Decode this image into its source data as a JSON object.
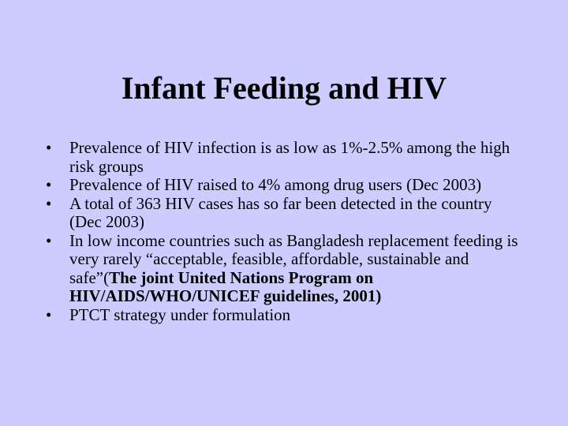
{
  "slide": {
    "title": "Infant Feeding and HIV",
    "bullet_glyph": "•",
    "bullets": [
      {
        "text": "Prevalence of  HIV infection is as low as 1%-2.5% among the high risk groups"
      },
      {
        "text": "Prevalence of  HIV raised to 4% among drug users   (Dec 2003)"
      },
      {
        "text": "A total of 363 HIV cases has so far been detected in the country (Dec 2003)"
      },
      {
        "text": "In low income countries such as Bangladesh replacement feeding is very rarely “acceptable, feasible, affordable, sustainable and safe”(",
        "bold_text": "The joint United Nations Program on HIV/AIDS/WHO/UNICEF guidelines, 2001)"
      },
      {
        "text": "PTCT strategy under formulation"
      }
    ]
  },
  "colors": {
    "background": "#ccccff",
    "text": "#000000"
  }
}
